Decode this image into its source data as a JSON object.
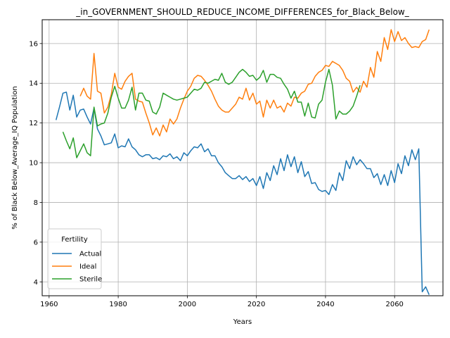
{
  "chart_data": {
    "type": "line",
    "title": "_in_GOVERNMENT_SHOULD_REDUCE_INCOME_DIFFERENCES_for_Black_Below_",
    "xlabel": "Years",
    "ylabel": "% of Black Below_Average_IQ Population",
    "xlim": [
      1958,
      2074
    ],
    "ylim": [
      3.3,
      17.2
    ],
    "xticks": [
      1960,
      1980,
      2000,
      2020,
      2040,
      2060
    ],
    "yticks": [
      4,
      6,
      8,
      10,
      12,
      14,
      16
    ],
    "grid": true,
    "legend": {
      "title": "Fertility",
      "placement": "lower-left"
    },
    "series": [
      {
        "name": "Actual",
        "color": "#1f77b4",
        "x": [
          1962,
          1963,
          1964,
          1965,
          1966,
          1967,
          1968,
          1969,
          1970,
          1971,
          1972,
          1973,
          1974,
          1975,
          1976,
          1977,
          1978,
          1979,
          1980,
          1981,
          1982,
          1983,
          1984,
          1985,
          1986,
          1987,
          1988,
          1989,
          1990,
          1991,
          1992,
          1993,
          1994,
          1995,
          1996,
          1997,
          1998,
          1999,
          2000,
          2001,
          2002,
          2003,
          2004,
          2005,
          2006,
          2007,
          2008,
          2009,
          2010,
          2011,
          2012,
          2013,
          2014,
          2015,
          2016,
          2017,
          2018,
          2019,
          2020,
          2021,
          2022,
          2023,
          2024,
          2025,
          2026,
          2027,
          2028,
          2029,
          2030,
          2031,
          2032,
          2033,
          2034,
          2035,
          2036,
          2037,
          2038,
          2039,
          2040,
          2041,
          2042,
          2043,
          2044,
          2045,
          2046,
          2047,
          2048,
          2049,
          2050,
          2051,
          2052,
          2053,
          2054,
          2055,
          2056,
          2057,
          2058,
          2059,
          2060,
          2061,
          2062,
          2063,
          2064,
          2065,
          2066,
          2067,
          2068,
          2069,
          2070
        ],
        "values": [
          12.15,
          12.8,
          13.5,
          13.55,
          12.65,
          13.4,
          12.3,
          12.65,
          12.7,
          12.3,
          11.95,
          12.75,
          11.7,
          11.35,
          10.9,
          10.95,
          11.0,
          11.45,
          10.75,
          10.85,
          10.8,
          11.2,
          10.8,
          10.65,
          10.4,
          10.3,
          10.4,
          10.4,
          10.2,
          10.25,
          10.15,
          10.35,
          10.3,
          10.45,
          10.2,
          10.3,
          10.1,
          10.5,
          10.35,
          10.6,
          10.8,
          10.75,
          10.95,
          10.55,
          10.7,
          10.35,
          10.35,
          10.0,
          9.8,
          9.5,
          9.35,
          9.2,
          9.2,
          9.35,
          9.15,
          9.3,
          9.05,
          9.2,
          8.85,
          9.3,
          8.7,
          9.5,
          9.1,
          9.85,
          9.4,
          10.2,
          9.6,
          10.4,
          9.8,
          10.3,
          9.5,
          10.05,
          9.3,
          9.55,
          8.95,
          9.0,
          8.65,
          8.55,
          8.6,
          8.4,
          8.9,
          8.6,
          9.5,
          9.1,
          10.1,
          9.7,
          10.3,
          9.9,
          10.15,
          9.95,
          9.7,
          9.7,
          9.25,
          9.45,
          8.9,
          9.4,
          8.85,
          9.6,
          9.0,
          9.95,
          9.45,
          10.35,
          9.85,
          10.65,
          10.15,
          10.7,
          3.5,
          3.75,
          3.35
        ]
      },
      {
        "name": "Ideal",
        "color": "#ff7f0e",
        "x": [
          1969,
          1970,
          1971,
          1972,
          1973,
          1974,
          1975,
          1976,
          1977,
          1978,
          1979,
          1980,
          1981,
          1982,
          1983,
          1984,
          1985,
          1986,
          1987,
          1988,
          1989,
          1990,
          1991,
          1992,
          1993,
          1994,
          1995,
          1996,
          1997,
          1998,
          1999,
          2000,
          2001,
          2002,
          2003,
          2004,
          2005,
          2006,
          2007,
          2008,
          2009,
          2010,
          2011,
          2012,
          2013,
          2014,
          2015,
          2016,
          2017,
          2018,
          2019,
          2020,
          2021,
          2022,
          2023,
          2024,
          2025,
          2026,
          2027,
          2028,
          2029,
          2030,
          2031,
          2032,
          2033,
          2034,
          2035,
          2036,
          2037,
          2038,
          2039,
          2040,
          2041,
          2042,
          2043,
          2044,
          2045,
          2046,
          2047,
          2048,
          2049,
          2050,
          2051,
          2052,
          2053,
          2054,
          2055,
          2056,
          2057,
          2058,
          2059,
          2060,
          2061,
          2062,
          2063,
          2064,
          2065,
          2066,
          2067,
          2068,
          2069,
          2070
        ],
        "values": [
          13.35,
          13.75,
          13.35,
          13.2,
          15.5,
          13.6,
          13.5,
          12.5,
          12.8,
          13.45,
          14.5,
          13.8,
          13.7,
          14.1,
          14.35,
          14.5,
          13.2,
          13.1,
          13.05,
          12.5,
          12.0,
          11.4,
          11.75,
          11.35,
          11.9,
          11.55,
          12.2,
          11.95,
          12.2,
          12.75,
          13.2,
          13.6,
          13.85,
          14.25,
          14.4,
          14.35,
          14.15,
          13.9,
          13.6,
          13.2,
          12.85,
          12.65,
          12.55,
          12.55,
          12.75,
          12.95,
          13.3,
          13.2,
          13.75,
          13.15,
          13.5,
          12.95,
          13.1,
          12.3,
          13.15,
          12.75,
          13.15,
          12.75,
          12.85,
          12.55,
          13.0,
          12.85,
          13.3,
          13.25,
          13.5,
          13.6,
          13.95,
          14.0,
          14.35,
          14.55,
          14.65,
          14.9,
          14.85,
          15.1,
          15.0,
          14.9,
          14.65,
          14.25,
          14.1,
          13.55,
          13.8,
          13.55,
          14.1,
          13.8,
          14.8,
          14.3,
          15.6,
          15.1,
          16.3,
          15.7,
          16.7,
          16.1,
          16.6,
          16.15,
          16.3,
          16.0,
          15.8,
          15.85,
          15.8,
          16.1,
          16.2,
          16.7
        ]
      },
      {
        "name": "Sterile",
        "color": "#2ca02c",
        "x": [
          1964,
          1965,
          1966,
          1967,
          1968,
          1969,
          1970,
          1971,
          1972,
          1973,
          1974,
          1975,
          1976,
          1977,
          1978,
          1979,
          1980,
          1981,
          1982,
          1983,
          1984,
          1985,
          1986,
          1987,
          1988,
          1989,
          1990,
          1991,
          1992,
          1993,
          1994,
          1995,
          1996,
          1997,
          1998,
          1999,
          2000,
          2001,
          2002,
          2003,
          2004,
          2005,
          2006,
          2007,
          2008,
          2009,
          2010,
          2011,
          2012,
          2013,
          2014,
          2015,
          2016,
          2017,
          2018,
          2019,
          2020,
          2021,
          2022,
          2023,
          2024,
          2025,
          2026,
          2027,
          2028,
          2029,
          2030,
          2031,
          2032,
          2033,
          2034,
          2035,
          2036,
          2037,
          2038,
          2039,
          2040,
          2041,
          2042,
          2043,
          2044,
          2045,
          2046,
          2047,
          2048,
          2049,
          2050
        ],
        "values": [
          11.55,
          11.1,
          10.7,
          11.25,
          10.25,
          10.6,
          10.95,
          10.5,
          10.35,
          12.8,
          11.85,
          11.95,
          12.0,
          12.5,
          13.3,
          13.85,
          13.25,
          12.75,
          12.75,
          13.15,
          13.8,
          12.65,
          13.5,
          13.5,
          13.15,
          13.1,
          12.55,
          12.45,
          12.8,
          13.5,
          13.4,
          13.3,
          13.2,
          13.15,
          13.2,
          13.25,
          13.3,
          13.5,
          13.7,
          13.65,
          13.75,
          14.05,
          14.0,
          14.1,
          14.2,
          14.15,
          14.5,
          14.05,
          13.95,
          14.05,
          14.3,
          14.55,
          14.7,
          14.55,
          14.35,
          14.4,
          14.15,
          14.3,
          14.65,
          14.05,
          14.45,
          14.45,
          14.3,
          14.25,
          13.95,
          13.7,
          13.25,
          13.6,
          13.05,
          13.05,
          12.35,
          13.0,
          12.3,
          12.25,
          12.95,
          13.15,
          14.05,
          14.7,
          13.9,
          12.2,
          12.6,
          12.45,
          12.45,
          12.6,
          12.85,
          13.35,
          13.9
        ]
      }
    ]
  }
}
